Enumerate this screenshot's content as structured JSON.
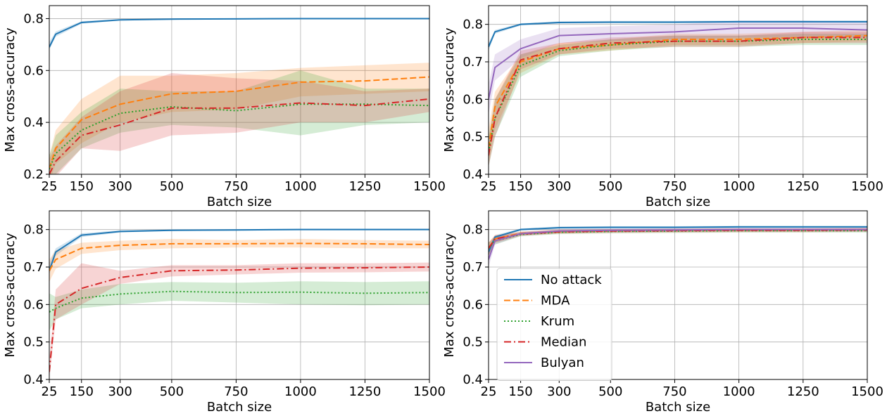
{
  "charts": [
    {
      "type": "line",
      "xlabel": "Batch size",
      "ylabel": "Max cross-accuracy",
      "xlim": [
        25,
        1500
      ],
      "ylim": [
        0.2,
        0.85
      ],
      "xticks": [
        25,
        150,
        300,
        500,
        750,
        1000,
        1250,
        1500
      ],
      "yticks": [
        0.2,
        0.4,
        0.6,
        0.8
      ],
      "ytick_labels": [
        "0.2",
        "0.4",
        "0.6",
        "0.8"
      ],
      "grid": true,
      "x": [
        25,
        50,
        150,
        300,
        500,
        750,
        1000,
        1250,
        1500
      ],
      "series": [
        {
          "name": "No attack",
          "values": [
            0.69,
            0.74,
            0.785,
            0.795,
            0.798,
            0.799,
            0.8,
            0.8,
            0.8
          ],
          "lower": [
            0.68,
            0.73,
            0.78,
            0.792,
            0.796,
            0.797,
            0.798,
            0.798,
            0.798
          ],
          "upper": [
            0.71,
            0.75,
            0.79,
            0.798,
            0.8,
            0.801,
            0.802,
            0.802,
            0.802
          ]
        },
        {
          "name": "MDA",
          "values": [
            0.22,
            0.3,
            0.41,
            0.47,
            0.51,
            0.52,
            0.555,
            0.56,
            0.575
          ],
          "lower": [
            0.17,
            0.24,
            0.32,
            0.4,
            0.44,
            0.45,
            0.5,
            0.51,
            0.52
          ],
          "upper": [
            0.27,
            0.37,
            0.49,
            0.58,
            0.58,
            0.59,
            0.61,
            0.62,
            0.63
          ]
        },
        {
          "name": "Krum",
          "values": [
            0.22,
            0.28,
            0.37,
            0.435,
            0.46,
            0.445,
            0.47,
            0.47,
            0.465
          ],
          "lower": [
            0.16,
            0.2,
            0.3,
            0.36,
            0.39,
            0.38,
            0.35,
            0.39,
            0.4
          ],
          "upper": [
            0.27,
            0.35,
            0.44,
            0.53,
            0.52,
            0.52,
            0.6,
            0.53,
            0.53
          ]
        },
        {
          "name": "Median",
          "values": [
            0.2,
            0.25,
            0.35,
            0.39,
            0.455,
            0.455,
            0.475,
            0.465,
            0.49
          ],
          "lower": [
            0.15,
            0.19,
            0.3,
            0.29,
            0.35,
            0.36,
            0.4,
            0.4,
            0.44
          ],
          "upper": [
            0.26,
            0.31,
            0.42,
            0.52,
            0.59,
            0.57,
            0.56,
            0.52,
            0.53
          ]
        }
      ]
    },
    {
      "type": "line",
      "xlabel": "Batch size",
      "ylabel": "Max cross-accuracy",
      "xlim": [
        25,
        1500
      ],
      "ylim": [
        0.4,
        0.85
      ],
      "xticks": [
        25,
        150,
        300,
        500,
        750,
        1000,
        1250,
        1500
      ],
      "yticks": [
        0.4,
        0.5,
        0.6,
        0.7,
        0.8
      ],
      "ytick_labels": [
        "0.4",
        "0.5",
        "0.6",
        "0.7",
        "0.8"
      ],
      "grid": true,
      "x": [
        25,
        50,
        150,
        300,
        500,
        750,
        1000,
        1250,
        1500
      ],
      "series": [
        {
          "name": "No attack",
          "values": [
            0.74,
            0.78,
            0.8,
            0.805,
            0.806,
            0.806,
            0.807,
            0.807,
            0.807
          ],
          "lower": [
            0.73,
            0.775,
            0.797,
            0.802,
            0.803,
            0.803,
            0.804,
            0.804,
            0.804
          ],
          "upper": [
            0.75,
            0.785,
            0.803,
            0.808,
            0.809,
            0.809,
            0.81,
            0.81,
            0.81
          ]
        },
        {
          "name": "MDA",
          "values": [
            0.47,
            0.58,
            0.7,
            0.735,
            0.745,
            0.76,
            0.76,
            0.765,
            0.77
          ],
          "lower": [
            0.43,
            0.52,
            0.67,
            0.72,
            0.73,
            0.745,
            0.745,
            0.75,
            0.755
          ],
          "upper": [
            0.52,
            0.62,
            0.72,
            0.75,
            0.76,
            0.775,
            0.775,
            0.78,
            0.785
          ]
        },
        {
          "name": "Krum",
          "values": [
            0.46,
            0.55,
            0.69,
            0.73,
            0.745,
            0.755,
            0.755,
            0.76,
            0.76
          ],
          "lower": [
            0.42,
            0.5,
            0.66,
            0.715,
            0.73,
            0.74,
            0.74,
            0.745,
            0.745
          ],
          "upper": [
            0.5,
            0.6,
            0.72,
            0.745,
            0.76,
            0.77,
            0.77,
            0.775,
            0.775
          ]
        },
        {
          "name": "Median",
          "values": [
            0.45,
            0.55,
            0.705,
            0.735,
            0.75,
            0.755,
            0.755,
            0.765,
            0.765
          ],
          "lower": [
            0.42,
            0.5,
            0.68,
            0.72,
            0.735,
            0.74,
            0.74,
            0.75,
            0.75
          ],
          "upper": [
            0.49,
            0.6,
            0.73,
            0.75,
            0.765,
            0.77,
            0.77,
            0.78,
            0.78
          ]
        },
        {
          "name": "Bulyan",
          "values": [
            0.6,
            0.685,
            0.735,
            0.77,
            0.775,
            0.78,
            0.79,
            0.79,
            0.785
          ],
          "lower": [
            0.56,
            0.65,
            0.71,
            0.75,
            0.755,
            0.76,
            0.765,
            0.765,
            0.765
          ],
          "upper": [
            0.64,
            0.72,
            0.76,
            0.79,
            0.795,
            0.8,
            0.81,
            0.81,
            0.805
          ]
        }
      ]
    },
    {
      "type": "line",
      "xlabel": "Batch size",
      "ylabel": "Max cross-accuracy",
      "xlim": [
        25,
        1500
      ],
      "ylim": [
        0.4,
        0.85
      ],
      "xticks": [
        25,
        150,
        300,
        500,
        750,
        1000,
        1250,
        1500
      ],
      "yticks": [
        0.4,
        0.5,
        0.6,
        0.7,
        0.8
      ],
      "ytick_labels": [
        "0.4",
        "0.5",
        "0.6",
        "0.7",
        "0.8"
      ],
      "grid": true,
      "x": [
        25,
        50,
        150,
        300,
        500,
        750,
        1000,
        1250,
        1500
      ],
      "series": [
        {
          "name": "No attack",
          "values": [
            0.69,
            0.74,
            0.785,
            0.795,
            0.798,
            0.799,
            0.8,
            0.8,
            0.8
          ],
          "lower": [
            0.68,
            0.73,
            0.78,
            0.792,
            0.796,
            0.797,
            0.798,
            0.798,
            0.798
          ],
          "upper": [
            0.71,
            0.75,
            0.79,
            0.798,
            0.8,
            0.801,
            0.802,
            0.802,
            0.802
          ]
        },
        {
          "name": "MDA",
          "values": [
            0.69,
            0.72,
            0.75,
            0.758,
            0.762,
            0.762,
            0.763,
            0.762,
            0.76
          ],
          "lower": [
            0.66,
            0.695,
            0.735,
            0.745,
            0.75,
            0.752,
            0.752,
            0.75,
            0.75
          ],
          "upper": [
            0.72,
            0.745,
            0.765,
            0.77,
            0.775,
            0.772,
            0.775,
            0.772,
            0.77
          ]
        },
        {
          "name": "Krum",
          "values": [
            0.58,
            0.59,
            0.617,
            0.628,
            0.635,
            0.632,
            0.633,
            0.63,
            0.632
          ],
          "lower": [
            0.53,
            0.56,
            0.59,
            0.6,
            0.61,
            0.605,
            0.6,
            0.598,
            0.6
          ],
          "upper": [
            0.63,
            0.62,
            0.64,
            0.655,
            0.66,
            0.658,
            0.662,
            0.66,
            0.662
          ]
        },
        {
          "name": "Median",
          "values": [
            0.42,
            0.6,
            0.643,
            0.672,
            0.69,
            0.692,
            0.697,
            0.698,
            0.7
          ],
          "lower": [
            0.4,
            0.56,
            0.6,
            0.655,
            0.675,
            0.68,
            0.685,
            0.686,
            0.688
          ],
          "upper": [
            0.45,
            0.64,
            0.71,
            0.69,
            0.705,
            0.705,
            0.71,
            0.71,
            0.712
          ]
        }
      ]
    },
    {
      "type": "line",
      "xlabel": "Batch size",
      "ylabel": "Max cross-accuracy",
      "xlim": [
        25,
        1500
      ],
      "ylim": [
        0.4,
        0.85
      ],
      "xticks": [
        25,
        150,
        300,
        500,
        750,
        1000,
        1250,
        1500
      ],
      "yticks": [
        0.4,
        0.5,
        0.6,
        0.7,
        0.8
      ],
      "ytick_labels": [
        "0.4",
        "0.5",
        "0.6",
        "0.7",
        "0.8"
      ],
      "grid": true,
      "legend_location": "lower-left",
      "x": [
        25,
        50,
        150,
        300,
        500,
        750,
        1000,
        1250,
        1500
      ],
      "series": [
        {
          "name": "No attack",
          "values": [
            0.74,
            0.78,
            0.8,
            0.805,
            0.806,
            0.806,
            0.807,
            0.807,
            0.807
          ],
          "lower": [
            0.73,
            0.775,
            0.797,
            0.802,
            0.803,
            0.803,
            0.804,
            0.804,
            0.804
          ],
          "upper": [
            0.75,
            0.785,
            0.803,
            0.808,
            0.809,
            0.809,
            0.81,
            0.81,
            0.81
          ]
        },
        {
          "name": "MDA",
          "values": [
            0.75,
            0.775,
            0.79,
            0.795,
            0.797,
            0.798,
            0.799,
            0.799,
            0.8
          ],
          "lower": [
            0.73,
            0.765,
            0.785,
            0.79,
            0.793,
            0.794,
            0.795,
            0.795,
            0.796
          ],
          "upper": [
            0.765,
            0.785,
            0.795,
            0.8,
            0.801,
            0.802,
            0.803,
            0.803,
            0.804
          ]
        },
        {
          "name": "Krum",
          "values": [
            0.75,
            0.77,
            0.787,
            0.793,
            0.795,
            0.796,
            0.797,
            0.797,
            0.797
          ],
          "lower": [
            0.73,
            0.76,
            0.782,
            0.788,
            0.79,
            0.791,
            0.792,
            0.792,
            0.792
          ],
          "upper": [
            0.765,
            0.78,
            0.792,
            0.798,
            0.8,
            0.801,
            0.802,
            0.802,
            0.802
          ]
        },
        {
          "name": "Median",
          "values": [
            0.75,
            0.775,
            0.788,
            0.794,
            0.796,
            0.797,
            0.798,
            0.798,
            0.799
          ],
          "lower": [
            0.73,
            0.765,
            0.783,
            0.789,
            0.791,
            0.792,
            0.793,
            0.793,
            0.794
          ],
          "upper": [
            0.765,
            0.785,
            0.793,
            0.799,
            0.801,
            0.802,
            0.803,
            0.803,
            0.804
          ]
        },
        {
          "name": "Bulyan",
          "values": [
            0.72,
            0.77,
            0.789,
            0.796,
            0.798,
            0.799,
            0.8,
            0.8,
            0.8
          ],
          "lower": [
            0.7,
            0.76,
            0.784,
            0.791,
            0.793,
            0.794,
            0.795,
            0.795,
            0.795
          ],
          "upper": [
            0.74,
            0.78,
            0.794,
            0.801,
            0.803,
            0.804,
            0.805,
            0.805,
            0.805
          ]
        }
      ],
      "legend": [
        "No attack",
        "MDA",
        "Krum",
        "Median",
        "Bulyan"
      ]
    }
  ],
  "styles": {
    "No attack": {
      "color": "#1f77b4",
      "dash": "solid"
    },
    "MDA": {
      "color": "#ff7f0e",
      "dash": "dashed"
    },
    "Krum": {
      "color": "#2ca02c",
      "dash": "dotted"
    },
    "Median": {
      "color": "#d62728",
      "dash": "dashdot"
    },
    "Bulyan": {
      "color": "#9467bd",
      "dash": "solid"
    }
  }
}
